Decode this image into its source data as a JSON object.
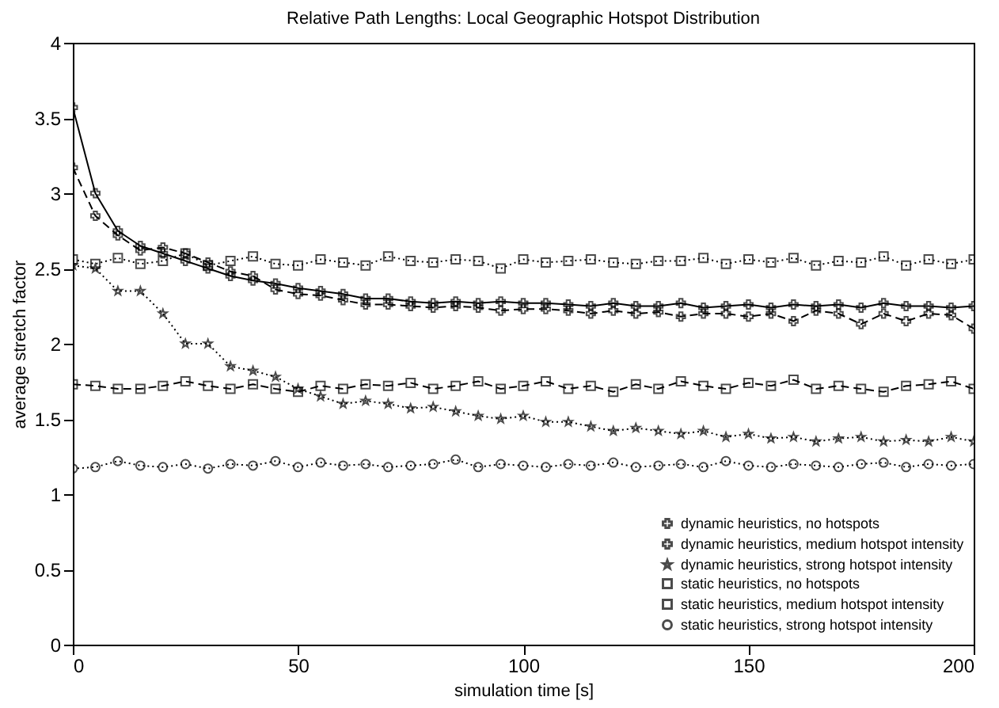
{
  "chart_data": {
    "type": "line",
    "title": "Relative Path Lengths: Local Geographic Hotspot Distribution",
    "xlabel": "simulation time [s]",
    "ylabel": "average stretch factor",
    "x": [
      0,
      5,
      10,
      15,
      20,
      25,
      30,
      35,
      40,
      45,
      50,
      55,
      60,
      65,
      70,
      75,
      80,
      85,
      90,
      95,
      100,
      105,
      110,
      115,
      120,
      125,
      130,
      135,
      140,
      145,
      150,
      155,
      160,
      165,
      170,
      175,
      180,
      185,
      190,
      195,
      200
    ],
    "xlim": [
      0,
      200
    ],
    "xticks": [
      0,
      50,
      100,
      150,
      200
    ],
    "ylim": [
      0,
      4
    ],
    "yticks": [
      0,
      0.5,
      1,
      1.5,
      2,
      2.5,
      3,
      3.5,
      4
    ],
    "grid": false,
    "legend": "bottom right",
    "series": [
      {
        "name": "dynamic heuristics, no hotspots",
        "color": "#000000",
        "marker": "cross",
        "line_style": "solid",
        "values": [
          3.57,
          3.0,
          2.75,
          2.65,
          2.6,
          2.55,
          2.5,
          2.45,
          2.42,
          2.4,
          2.37,
          2.35,
          2.33,
          2.3,
          2.3,
          2.28,
          2.27,
          2.28,
          2.27,
          2.28,
          2.27,
          2.27,
          2.26,
          2.25,
          2.27,
          2.25,
          2.25,
          2.27,
          2.24,
          2.25,
          2.26,
          2.24,
          2.26,
          2.25,
          2.26,
          2.24,
          2.27,
          2.25,
          2.25,
          2.24,
          2.25
        ]
      },
      {
        "name": "dynamic heuristics, medium hotspot intensity",
        "color": "#000000",
        "marker": "cross",
        "line_style": "dashed",
        "values": [
          3.17,
          2.85,
          2.72,
          2.62,
          2.64,
          2.6,
          2.54,
          2.48,
          2.45,
          2.36,
          2.33,
          2.32,
          2.29,
          2.26,
          2.26,
          2.25,
          2.24,
          2.25,
          2.24,
          2.22,
          2.23,
          2.23,
          2.22,
          2.2,
          2.22,
          2.2,
          2.21,
          2.18,
          2.2,
          2.2,
          2.18,
          2.2,
          2.15,
          2.22,
          2.2,
          2.13,
          2.2,
          2.15,
          2.2,
          2.19,
          2.1
        ]
      },
      {
        "name": "dynamic heuristics, strong hotspot intensity",
        "color": "#000000",
        "marker": "star",
        "line_style": "dotted",
        "values": [
          2.52,
          2.5,
          2.35,
          2.35,
          2.2,
          2.0,
          2.0,
          1.85,
          1.82,
          1.78,
          1.7,
          1.65,
          1.6,
          1.62,
          1.6,
          1.57,
          1.58,
          1.55,
          1.52,
          1.5,
          1.52,
          1.48,
          1.48,
          1.45,
          1.42,
          1.44,
          1.42,
          1.4,
          1.42,
          1.38,
          1.4,
          1.37,
          1.38,
          1.35,
          1.37,
          1.38,
          1.35,
          1.36,
          1.35,
          1.38,
          1.35
        ]
      },
      {
        "name": "static heuristics, no hotspots",
        "color": "#000000",
        "marker": "square",
        "line_style": "dotted",
        "values": [
          2.56,
          2.53,
          2.57,
          2.53,
          2.55,
          2.6,
          2.52,
          2.55,
          2.58,
          2.53,
          2.52,
          2.56,
          2.54,
          2.52,
          2.58,
          2.55,
          2.54,
          2.56,
          2.55,
          2.5,
          2.56,
          2.54,
          2.55,
          2.56,
          2.54,
          2.53,
          2.55,
          2.55,
          2.57,
          2.53,
          2.56,
          2.54,
          2.57,
          2.52,
          2.55,
          2.54,
          2.58,
          2.52,
          2.56,
          2.53,
          2.56
        ]
      },
      {
        "name": "static heuristics, medium hotspot intensity",
        "color": "#000000",
        "marker": "square",
        "line_style": "dashed",
        "values": [
          1.73,
          1.72,
          1.7,
          1.7,
          1.72,
          1.75,
          1.72,
          1.7,
          1.73,
          1.7,
          1.68,
          1.72,
          1.7,
          1.73,
          1.72,
          1.74,
          1.7,
          1.72,
          1.75,
          1.7,
          1.72,
          1.75,
          1.7,
          1.72,
          1.68,
          1.73,
          1.7,
          1.75,
          1.72,
          1.7,
          1.74,
          1.72,
          1.76,
          1.7,
          1.72,
          1.7,
          1.68,
          1.72,
          1.73,
          1.75,
          1.7
        ]
      },
      {
        "name": "static heuristics, strong hotspot intensity",
        "color": "#000000",
        "marker": "circle",
        "line_style": "dotted",
        "values": [
          1.17,
          1.18,
          1.22,
          1.19,
          1.18,
          1.2,
          1.17,
          1.2,
          1.19,
          1.22,
          1.18,
          1.21,
          1.19,
          1.2,
          1.18,
          1.19,
          1.2,
          1.23,
          1.18,
          1.2,
          1.19,
          1.18,
          1.2,
          1.19,
          1.21,
          1.18,
          1.19,
          1.2,
          1.18,
          1.22,
          1.19,
          1.18,
          1.2,
          1.19,
          1.18,
          1.2,
          1.21,
          1.18,
          1.2,
          1.19,
          1.2
        ]
      }
    ]
  }
}
